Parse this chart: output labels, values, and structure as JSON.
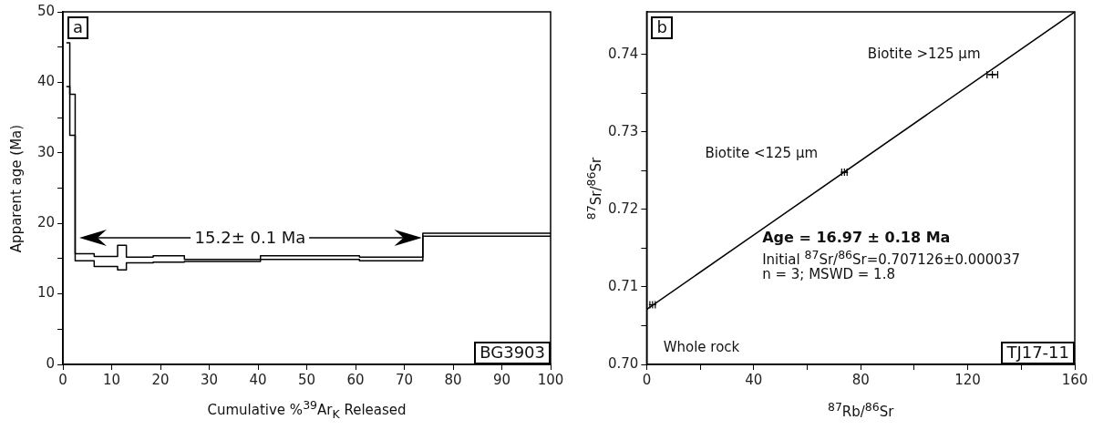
{
  "chart_data": [
    {
      "type": "step",
      "xlabel": "Cumulative %$^{39}$Ar$_{K}$ Released",
      "ylabel": "Apparent age (Ma)",
      "series": [
        {
          "color": "#000000",
          "x": [
            0.7,
            1.4,
            2.5,
            6.4,
            11.2,
            13.0,
            18.5,
            24.9,
            40.5,
            60.8,
            73.8,
            100
          ],
          "values": [
            45.6,
            38.3,
            15.7,
            15.3,
            16.9,
            15.2,
            15.4,
            14.9,
            15.4,
            15.2,
            18.6,
            18.6
          ]
        },
        {
          "color": "#000000",
          "x": [
            0.7,
            1.4,
            2.5,
            6.4,
            11.2,
            13.0,
            18.5,
            24.9,
            40.5,
            60.8,
            73.8,
            100
          ],
          "values": [
            39.4,
            32.5,
            14.7,
            13.9,
            13.4,
            14.4,
            14.5,
            14.6,
            14.9,
            14.7,
            18.2,
            18.2
          ]
        }
      ],
      "xlim": [
        0,
        100
      ],
      "xticks": [
        0,
        10,
        20,
        30,
        40,
        50,
        60,
        70,
        80,
        90,
        100
      ],
      "ylim": [
        0,
        50
      ],
      "yticks": [
        0,
        {
          "value": 5,
          "label": null
        },
        10,
        {
          "value": 15,
          "label": null
        },
        20,
        {
          "value": 25,
          "label": null
        },
        30,
        {
          "value": 35,
          "label": null
        },
        40,
        {
          "value": 45,
          "label": null
        },
        50
      ],
      "annotations": [
        "a",
        "15.2± 0.1 Ma",
        "BG3903"
      ]
    },
    {
      "type": "scatter",
      "xlabel": "$^{87}$Rb/$^{86}$Sr",
      "ylabel": "$^{87}$Sr/$^{86}$Sr",
      "series": [
        {
          "color": "#000000",
          "marker": "cross",
          "x": [
            2.2,
            73.9,
            129.2
          ],
          "values": [
            0.7077,
            0.7248,
            0.7374
          ],
          "xerrors": [
            1,
            1,
            2
          ]
        },
        {
          "type": "line",
          "color": "#000000",
          "x": [
            0,
            160
          ],
          "values": [
            0.7071,
            0.7455
          ]
        }
      ],
      "xlim": [
        0,
        160
      ],
      "xticks": [
        0,
        {
          "value": 20,
          "label": null
        },
        40,
        {
          "value": 60,
          "label": null
        },
        80,
        {
          "value": 100,
          "label": null
        },
        120,
        {
          "value": 140,
          "label": null
        },
        160
      ],
      "ylim": [
        0.7,
        0.7455
      ],
      "yticks": [
        {
          "value": 0.7,
          "label": "0.70"
        },
        {
          "value": 0.705,
          "label": null
        },
        {
          "value": 0.71,
          "label": "0.71"
        },
        {
          "value": 0.715,
          "label": null
        },
        {
          "value": 0.72,
          "label": "0.72"
        },
        {
          "value": 0.725,
          "label": null
        },
        {
          "value": 0.73,
          "label": "0.73"
        },
        {
          "value": 0.735,
          "label": null
        },
        {
          "value": 0.74,
          "label": "0.74"
        }
      ],
      "annotations": [
        "b",
        "Age = 16.97 ± 0.18 Ma",
        "Initial $^{87}$Sr/$^{86}$Sr=0.707126±0.000037",
        "n = 3; MSWD = 1.8",
        "Whole rock",
        "Biotite <125 µm",
        "Biotite >125 µm",
        "TJ17-11"
      ]
    }
  ]
}
